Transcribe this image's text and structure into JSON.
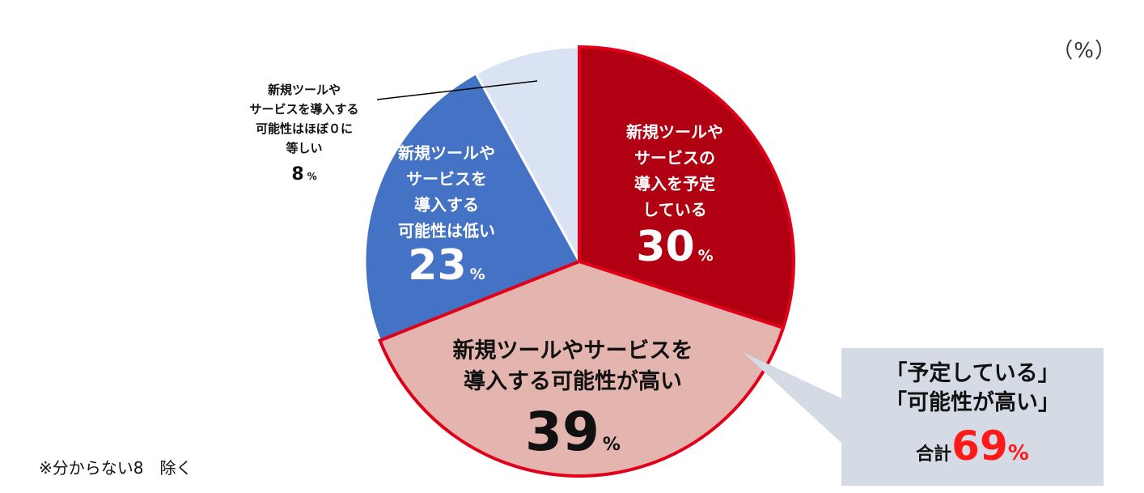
{
  "unit_label": "（%）",
  "footnote": "※分からない8　除く",
  "callout": {
    "line1": "「予定している」",
    "line2": "「可能性が高い」",
    "total_label": "合計",
    "total_value": "69",
    "total_unit": "%"
  },
  "colors": {
    "planned": "#b00012",
    "high": "#e4b4ae",
    "low": "#4472c4",
    "zero": "#dae3f3",
    "emphasis_border": "#e0001a",
    "callout_bg": "#d5dbe4",
    "total_text": "#ff1a1a"
  },
  "chart_data": {
    "type": "pie",
    "slices": [
      {
        "label": [
          "新規ツールや",
          "サービスの",
          "導入を予定",
          "している"
        ],
        "value": 30,
        "value_label": "30",
        "unit": "%"
      },
      {
        "label": [
          "新規ツールやサービスを",
          "導入する可能性が高い"
        ],
        "value": 39,
        "value_label": "39",
        "unit": "%"
      },
      {
        "label": [
          "新規ツールや",
          "サービスを",
          "導入する",
          "可能性は低い"
        ],
        "value": 23,
        "value_label": "23",
        "unit": "%"
      },
      {
        "label": [
          "新規ツールや",
          "サービスを導入する",
          "可能性はほぼ０に",
          "等しい"
        ],
        "value": 8,
        "value_label": "8",
        "unit": "%"
      }
    ]
  }
}
